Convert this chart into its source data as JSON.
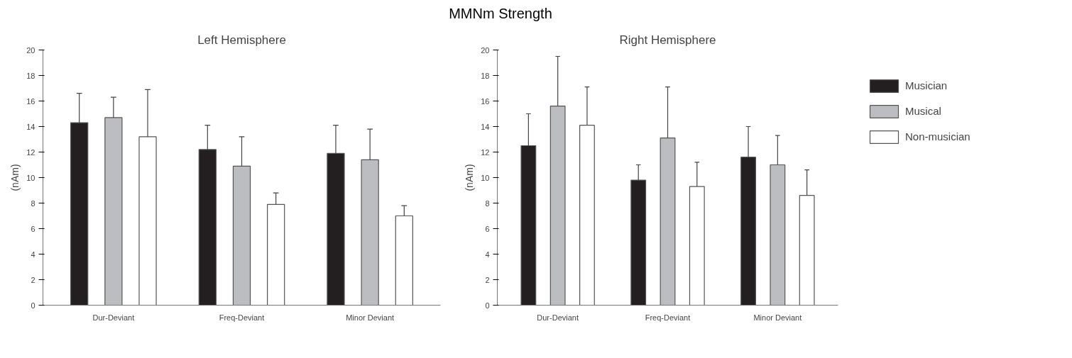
{
  "chart_data": [
    {
      "type": "bar",
      "title": "Left Hemisphere",
      "ylabel": "(nAm)",
      "annotations": [
        "MMNm Strength"
      ],
      "categories": [
        "Dur-Deviant",
        "Freq-Deviant",
        "Minor Deviant"
      ],
      "ylim": [
        0,
        20
      ],
      "yticks": [
        0,
        2,
        4,
        6,
        8,
        10,
        12,
        14,
        16,
        18,
        20
      ],
      "grid": false,
      "legend": false,
      "series": [
        {
          "color": "#231f20",
          "values": [
            14.3,
            12.2,
            11.9
          ],
          "errors": [
            [
              14.3,
              16.6
            ],
            [
              12.2,
              14.1
            ],
            [
              11.9,
              14.1
            ]
          ]
        },
        {
          "color": "#bcbdc0",
          "values": [
            14.7,
            10.9,
            11.4
          ],
          "errors": [
            [
              14.7,
              16.3
            ],
            [
              10.9,
              13.2
            ],
            [
              11.4,
              13.8
            ]
          ]
        },
        {
          "color": "#ffffff",
          "values": [
            13.2,
            7.9,
            7.0
          ],
          "errors": [
            [
              13.2,
              16.9
            ],
            [
              7.9,
              8.8
            ],
            [
              7.0,
              7.8
            ]
          ]
        }
      ]
    },
    {
      "type": "bar",
      "title": "Right Hemisphere",
      "ylabel": "(nAm)",
      "categories": [
        "Dur-Deviant",
        "Freq-Deviant",
        "Minor Deviant"
      ],
      "ylim": [
        0,
        20
      ],
      "yticks": [
        0,
        2,
        4,
        6,
        8,
        10,
        12,
        14,
        16,
        18,
        20
      ],
      "grid": false,
      "legend": "right",
      "series": [
        {
          "name": "Musician",
          "color": "#231f20",
          "values": [
            12.5,
            9.8,
            11.6
          ],
          "errors": [
            [
              12.5,
              15.0
            ],
            [
              9.8,
              11.0
            ],
            [
              11.6,
              14.0
            ]
          ]
        },
        {
          "name": "Musical",
          "color": "#bcbdc0",
          "values": [
            15.6,
            13.1,
            11.0
          ],
          "errors": [
            [
              15.6,
              19.5
            ],
            [
              13.1,
              17.1
            ],
            [
              11.0,
              13.3
            ]
          ]
        },
        {
          "name": "Non-musician",
          "color": "#ffffff",
          "values": [
            14.1,
            9.3,
            8.6
          ],
          "errors": [
            [
              14.1,
              17.1
            ],
            [
              9.3,
              11.2
            ],
            [
              8.6,
              10.6
            ]
          ]
        }
      ]
    }
  ]
}
